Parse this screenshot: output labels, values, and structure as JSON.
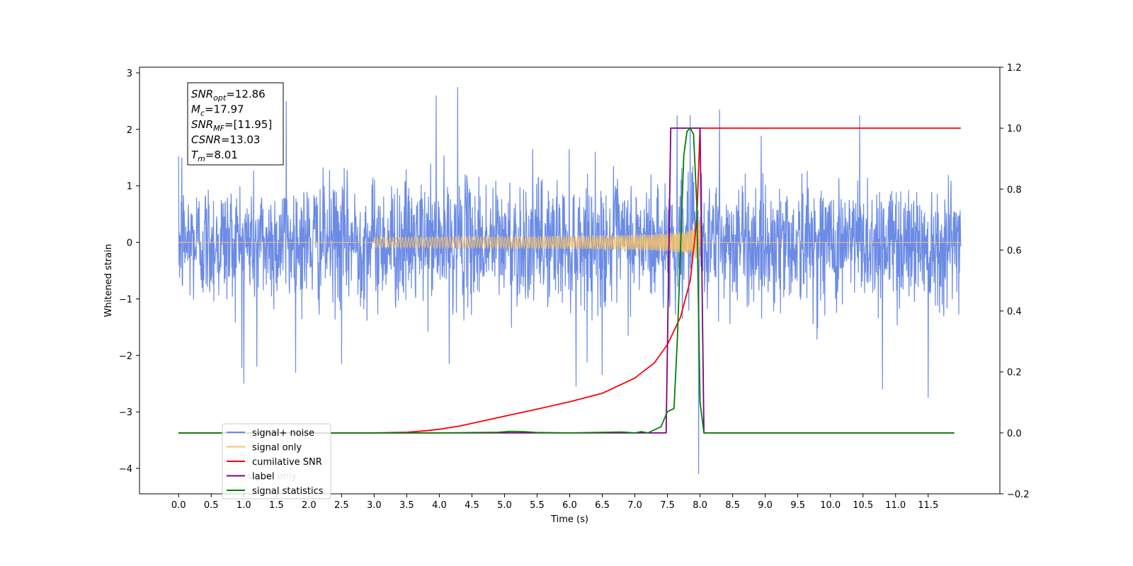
{
  "chart_data": {
    "type": "line",
    "xlabel": "Time (s)",
    "ylabel": "Whitened strain",
    "xlim": [
      -0.6,
      12.6
    ],
    "ylim": [
      -4.45,
      3.1
    ],
    "y2lim": [
      -0.2,
      1.2
    ],
    "x_ticks": [
      0.0,
      0.5,
      1.0,
      1.5,
      2.0,
      2.5,
      3.0,
      3.5,
      4.0,
      4.5,
      5.0,
      5.5,
      6.0,
      6.5,
      7.0,
      7.5,
      8.0,
      8.5,
      9.0,
      9.5,
      10.0,
      10.5,
      11.0,
      11.5
    ],
    "x_tick_labels": [
      "0.0",
      "0.5",
      "1.0",
      "1.5",
      "2.0",
      "2.5",
      "3.0",
      "3.5",
      "4.0",
      "4.5",
      "5.0",
      "5.5",
      "6.0",
      "6.5",
      "7.0",
      "7.5",
      "8.0",
      "8.5",
      "9.0",
      "9.5",
      "10.0",
      "10.5",
      "11.0",
      "11.5"
    ],
    "y_ticks": [
      3,
      2,
      1,
      0,
      -1,
      -2,
      -3,
      -4
    ],
    "y_tick_labels": [
      "3",
      "2",
      "1",
      "0",
      "−1",
      "−2",
      "−3",
      "−4"
    ],
    "y2_ticks": [
      1.2,
      1.0,
      0.8,
      0.6,
      0.4,
      0.2,
      0.0,
      -0.2
    ],
    "y2_tick_labels": [
      "1.2",
      "1.0",
      "0.8",
      "0.6",
      "0.4",
      "0.2",
      "0.0",
      "−0.2"
    ],
    "grid": false,
    "legend_position": "lower-left",
    "legend": [
      {
        "label": "signal+ noise",
        "color": "#6b8be6"
      },
      {
        "label": "signal only",
        "color": "#f5c26b"
      },
      {
        "label": "cumilative SNR",
        "color": "#ff0000"
      },
      {
        "label": "label",
        "color": "#800080"
      },
      {
        "label": "signal statistics",
        "color": "#008000"
      }
    ],
    "obscured_legend_text": "signal only",
    "info_box": {
      "lines": [
        {
          "symbol": "SNR",
          "sub": "opt",
          "text": "=12.86"
        },
        {
          "symbol": "M",
          "sub": "c",
          "text": "=17.97"
        },
        {
          "symbol": "SNR",
          "sub": "MF",
          "text": "=[11.95]"
        },
        {
          "symbol": "CSNR",
          "sub": "",
          "text": "=13.03"
        },
        {
          "symbol": "T",
          "sub": "m",
          "text": "=8.01"
        }
      ]
    },
    "series": [
      {
        "name": "signal+ noise",
        "axis": "left",
        "color": "#6b8be6",
        "x_range": [
          0,
          12
        ],
        "noise_std": 0.55,
        "peaks": [
          {
            "x": 0.05,
            "y": 1.5
          },
          {
            "x": 1.0,
            "y": -2.5
          },
          {
            "x": 1.2,
            "y": -2.2
          },
          {
            "x": 1.65,
            "y": 2.5
          },
          {
            "x": 4.28,
            "y": 2.75
          },
          {
            "x": 3.95,
            "y": 2.6
          },
          {
            "x": 7.65,
            "y": 2.25
          },
          {
            "x": 7.85,
            "y": 2.25
          },
          {
            "x": 8.3,
            "y": 2.35
          },
          {
            "x": 10.45,
            "y": 2.25
          },
          {
            "x": 10.8,
            "y": -2.6
          },
          {
            "x": 11.5,
            "y": -2.75
          },
          {
            "x": 7.98,
            "y": -4.1
          },
          {
            "x": 6.1,
            "y": -2.55
          },
          {
            "x": 6.5,
            "y": -2.35
          },
          {
            "x": 2.5,
            "y": -2.15
          },
          {
            "x": 4.15,
            "y": -2.15
          }
        ]
      },
      {
        "name": "signal only",
        "axis": "left",
        "color": "#f5c26b",
        "x_range": [
          0,
          12
        ],
        "merger_time": 8.0,
        "start_time": 3.0,
        "peak_amplitude": 0.9
      },
      {
        "name": "cumilative SNR",
        "axis": "right",
        "color": "#ff0000",
        "x": [
          0.0,
          3.0,
          3.5,
          3.8,
          4.0,
          4.3,
          4.6,
          5.0,
          5.5,
          6.0,
          6.5,
          7.0,
          7.3,
          7.5,
          7.7,
          7.85,
          7.95,
          8.0,
          12.0
        ],
        "y": [
          0.0,
          0.0,
          0.002,
          0.007,
          0.012,
          0.022,
          0.036,
          0.055,
          0.078,
          0.102,
          0.13,
          0.18,
          0.23,
          0.29,
          0.38,
          0.5,
          0.7,
          1.0,
          1.0
        ]
      },
      {
        "name": "label",
        "axis": "right",
        "color": "#800080",
        "x": [
          0.0,
          7.48,
          7.55,
          8.0,
          8.06,
          11.9
        ],
        "y": [
          0.0,
          0.0,
          1.0,
          1.0,
          0.0,
          0.0
        ]
      },
      {
        "name": "signal statistics",
        "axis": "right",
        "color": "#008000",
        "x": [
          0.0,
          1.0,
          2.0,
          3.0,
          4.0,
          4.9,
          5.1,
          5.3,
          5.5,
          6.0,
          6.8,
          7.0,
          7.1,
          7.2,
          7.3,
          7.4,
          7.5,
          7.55,
          7.6,
          7.65,
          7.7,
          7.75,
          7.8,
          7.85,
          7.9,
          7.95,
          8.0,
          8.06,
          11.9
        ],
        "y": [
          0.0,
          0.0,
          0.0,
          0.0,
          0.0,
          0.002,
          0.005,
          0.004,
          0.001,
          0.0,
          0.003,
          0.0,
          0.004,
          0.0,
          0.01,
          0.02,
          0.07,
          0.075,
          0.08,
          0.3,
          0.6,
          0.91,
          0.99,
          1.0,
          0.98,
          0.75,
          0.1,
          0.0,
          0.0
        ]
      }
    ]
  }
}
